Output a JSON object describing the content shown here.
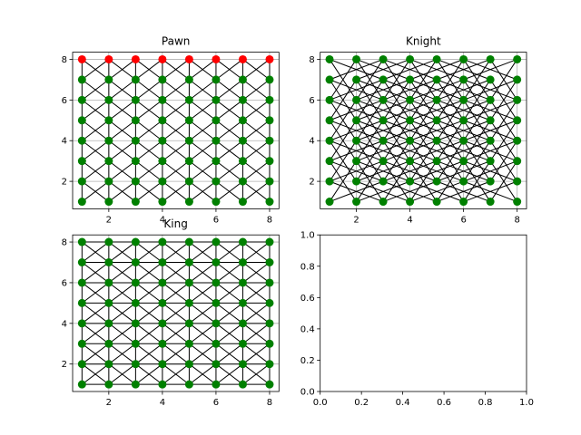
{
  "colors": {
    "node": "#008000",
    "node_highlight": "#ff0000",
    "edge": "#000000",
    "grid": "#b0b0b0"
  },
  "chart_data": [
    {
      "type": "scatter",
      "title": "Pawn",
      "graph": "pawn",
      "nodes": {
        "x_range": [
          1,
          8
        ],
        "y_range": [
          1,
          8
        ]
      },
      "highlight_row": 8,
      "xlim": [
        0.65,
        8.35
      ],
      "ylim": [
        0.65,
        8.35
      ],
      "xticks": [
        2,
        4,
        6,
        8
      ],
      "yticks": [
        2,
        4,
        6,
        8
      ],
      "grid": true
    },
    {
      "type": "scatter",
      "title": "Knight",
      "graph": "knight",
      "nodes": {
        "x_range": [
          1,
          8
        ],
        "y_range": [
          1,
          8
        ]
      },
      "xlim": [
        0.65,
        8.35
      ],
      "ylim": [
        0.65,
        8.35
      ],
      "xticks": [
        2,
        4,
        6,
        8
      ],
      "yticks": [
        2,
        4,
        6,
        8
      ],
      "grid": true
    },
    {
      "type": "scatter",
      "title": "King",
      "graph": "king",
      "nodes": {
        "x_range": [
          1,
          8
        ],
        "y_range": [
          1,
          8
        ]
      },
      "xlim": [
        0.65,
        8.35
      ],
      "ylim": [
        0.65,
        8.35
      ],
      "xticks": [
        2,
        4,
        6,
        8
      ],
      "yticks": [
        2,
        4,
        6,
        8
      ],
      "grid": true
    },
    {
      "type": "scatter",
      "title": "",
      "graph": "none",
      "xlim": [
        0.0,
        1.0
      ],
      "ylim": [
        0.0,
        1.0
      ],
      "xticks": [
        0.0,
        0.2,
        0.4,
        0.6,
        0.8,
        1.0
      ],
      "yticks": [
        0.0,
        0.2,
        0.4,
        0.6,
        0.8,
        1.0
      ],
      "tick_format": "1dp",
      "grid": false
    }
  ]
}
